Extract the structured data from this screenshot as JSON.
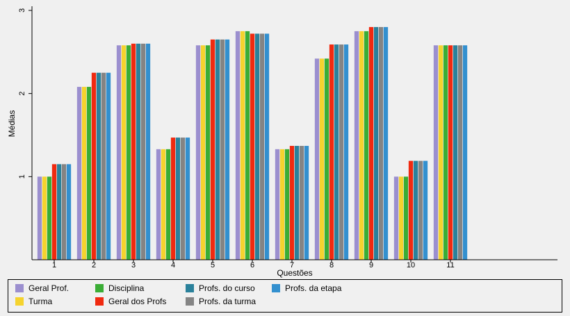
{
  "chart_data": {
    "type": "bar",
    "xlabel": "Questões",
    "ylabel": "Médias",
    "ylim": [
      0.0,
      3.05
    ],
    "yticks": [
      "1",
      "2",
      "3"
    ],
    "categories": [
      "1",
      "2",
      "3",
      "4",
      "5",
      "6",
      "7",
      "8",
      "9",
      "10",
      "11"
    ],
    "x_slots": 15,
    "grid": false,
    "legend_position": "bottom",
    "series": [
      {
        "name": "Geral Prof.",
        "color": "#9b8fcf",
        "values": [
          1.0,
          2.08,
          2.58,
          1.33,
          2.58,
          2.75,
          1.33,
          2.42,
          2.75,
          1.0,
          2.58
        ]
      },
      {
        "name": "Turma",
        "color": "#f5d32e",
        "values": [
          1.0,
          2.08,
          2.58,
          1.33,
          2.58,
          2.75,
          1.33,
          2.42,
          2.75,
          1.0,
          2.58
        ]
      },
      {
        "name": "Disciplina",
        "color": "#3aad35",
        "values": [
          1.0,
          2.08,
          2.58,
          1.33,
          2.58,
          2.75,
          1.33,
          2.42,
          2.75,
          1.0,
          2.58
        ]
      },
      {
        "name": "Geral dos Profs",
        "color": "#f02a10",
        "values": [
          1.15,
          2.25,
          2.6,
          1.47,
          2.65,
          2.72,
          1.37,
          2.59,
          2.8,
          1.19,
          2.58
        ]
      },
      {
        "name": "Profs. do curso",
        "color": "#2a819b",
        "values": [
          1.15,
          2.25,
          2.6,
          1.47,
          2.65,
          2.72,
          1.37,
          2.59,
          2.8,
          1.19,
          2.58
        ]
      },
      {
        "name": "Profs. da turma",
        "color": "#848484",
        "values": [
          1.15,
          2.25,
          2.6,
          1.47,
          2.65,
          2.72,
          1.37,
          2.59,
          2.8,
          1.19,
          2.58
        ]
      },
      {
        "name": "Profs. da etapa",
        "color": "#3390cf",
        "values": [
          1.15,
          2.25,
          2.6,
          1.47,
          2.65,
          2.72,
          1.37,
          2.59,
          2.8,
          1.19,
          2.58
        ]
      }
    ]
  }
}
